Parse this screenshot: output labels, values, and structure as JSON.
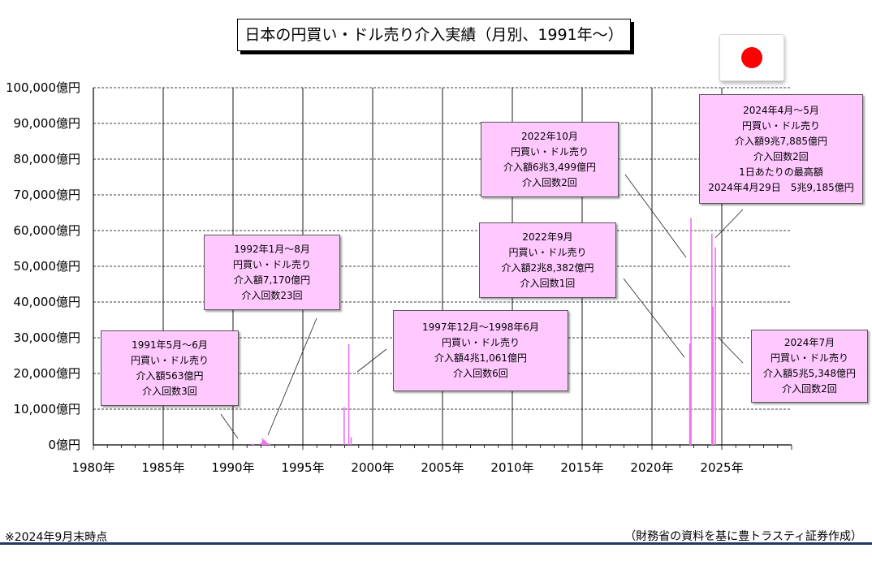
{
  "title": "日本の円買い・ドル売り介入実績（月別、1991年～）",
  "flag_icon": "japan-flag-icon",
  "colors": {
    "bar": "#ee6fee",
    "callout_bg": "#ffc8ff",
    "rule": "#1f3864",
    "flag_red": "#ff0000"
  },
  "callouts": [
    {
      "id": "1991",
      "lines": [
        "1991年5月～6月",
        "円買い・ドル売り",
        "介入額563億円",
        "介入回数3回"
      ]
    },
    {
      "id": "1992",
      "lines": [
        "1992年1月～8月",
        "円買い・ドル売り",
        "介入額7,170億円",
        "介入回数23回"
      ]
    },
    {
      "id": "1997",
      "lines": [
        "1997年12月～1998年6月",
        "円買い・ドル売り",
        "介入額4兆1,061億円",
        "介入回数6回"
      ]
    },
    {
      "id": "2022-10",
      "lines": [
        "2022年10月",
        "円買い・ドル売り",
        "介入額6兆3,499億円",
        "介入回数2回"
      ]
    },
    {
      "id": "2022-09",
      "lines": [
        "2022年9月",
        "円買い・ドル売り",
        "介入額2兆8,382億円",
        "介入回数1回"
      ]
    },
    {
      "id": "2024-04",
      "lines": [
        "2024年4月～5月",
        "円買い・ドル売り",
        "介入額9兆7,885億円",
        "介入回数2回",
        "1日あたりの最高額",
        "2024年4月29日　5兆9,185億円"
      ]
    },
    {
      "id": "2024-07",
      "lines": [
        "2024年7月",
        "円買い・ドル売り",
        "介入額5兆5,348億円",
        "介入回数2回"
      ]
    }
  ],
  "footnote": "※2024年9月末時点",
  "source": "（財務省の資料を基に豊トラスティ証券作成）",
  "chart_data": {
    "type": "bar",
    "title": "日本の円買い・ドル売り介入実績（月別、1991年～）",
    "xlabel": "",
    "ylabel": "",
    "xlim": [
      1980,
      2030
    ],
    "ylim": [
      0,
      100000
    ],
    "grid": true,
    "x_tick_labels": [
      "1980年",
      "1985年",
      "1990年",
      "1995年",
      "2000年",
      "2005年",
      "2010年",
      "2015年",
      "2020年",
      "2025年"
    ],
    "x_tick_values": [
      1980,
      1985,
      1990,
      1995,
      2000,
      2005,
      2010,
      2015,
      2020,
      2025
    ],
    "y_tick_labels": [
      "0億円",
      "10,000億円",
      "20,000億円",
      "30,000億円",
      "40,000億円",
      "50,000億円",
      "60,000億円",
      "70,000億円",
      "80,000億円",
      "90,000億円",
      "100,000億円"
    ],
    "y_tick_values": [
      0,
      10000,
      20000,
      30000,
      40000,
      50000,
      60000,
      70000,
      80000,
      90000,
      100000
    ],
    "series": [
      {
        "unit": "億円",
        "points": [
          {
            "x": "1991-05",
            "y": 300
          },
          {
            "x": "1991-06",
            "y": 263
          },
          {
            "x": "1992-01",
            "y": 700
          },
          {
            "x": "1992-02",
            "y": 1800
          },
          {
            "x": "1992-03",
            "y": 1500
          },
          {
            "x": "1992-04",
            "y": 1200
          },
          {
            "x": "1992-05",
            "y": 900
          },
          {
            "x": "1992-06",
            "y": 500
          },
          {
            "x": "1992-07",
            "y": 400
          },
          {
            "x": "1992-08",
            "y": 170
          },
          {
            "x": "1997-12",
            "y": 10600
          },
          {
            "x": "1998-04",
            "y": 28200
          },
          {
            "x": "1998-06",
            "y": 2200
          },
          {
            "x": "2022-09",
            "y": 28382
          },
          {
            "x": "2022-10",
            "y": 63499
          },
          {
            "x": "2024-04",
            "y": 59185
          },
          {
            "x": "2024-05",
            "y": 38700
          },
          {
            "x": "2024-07",
            "y": 55348
          }
        ]
      }
    ]
  }
}
